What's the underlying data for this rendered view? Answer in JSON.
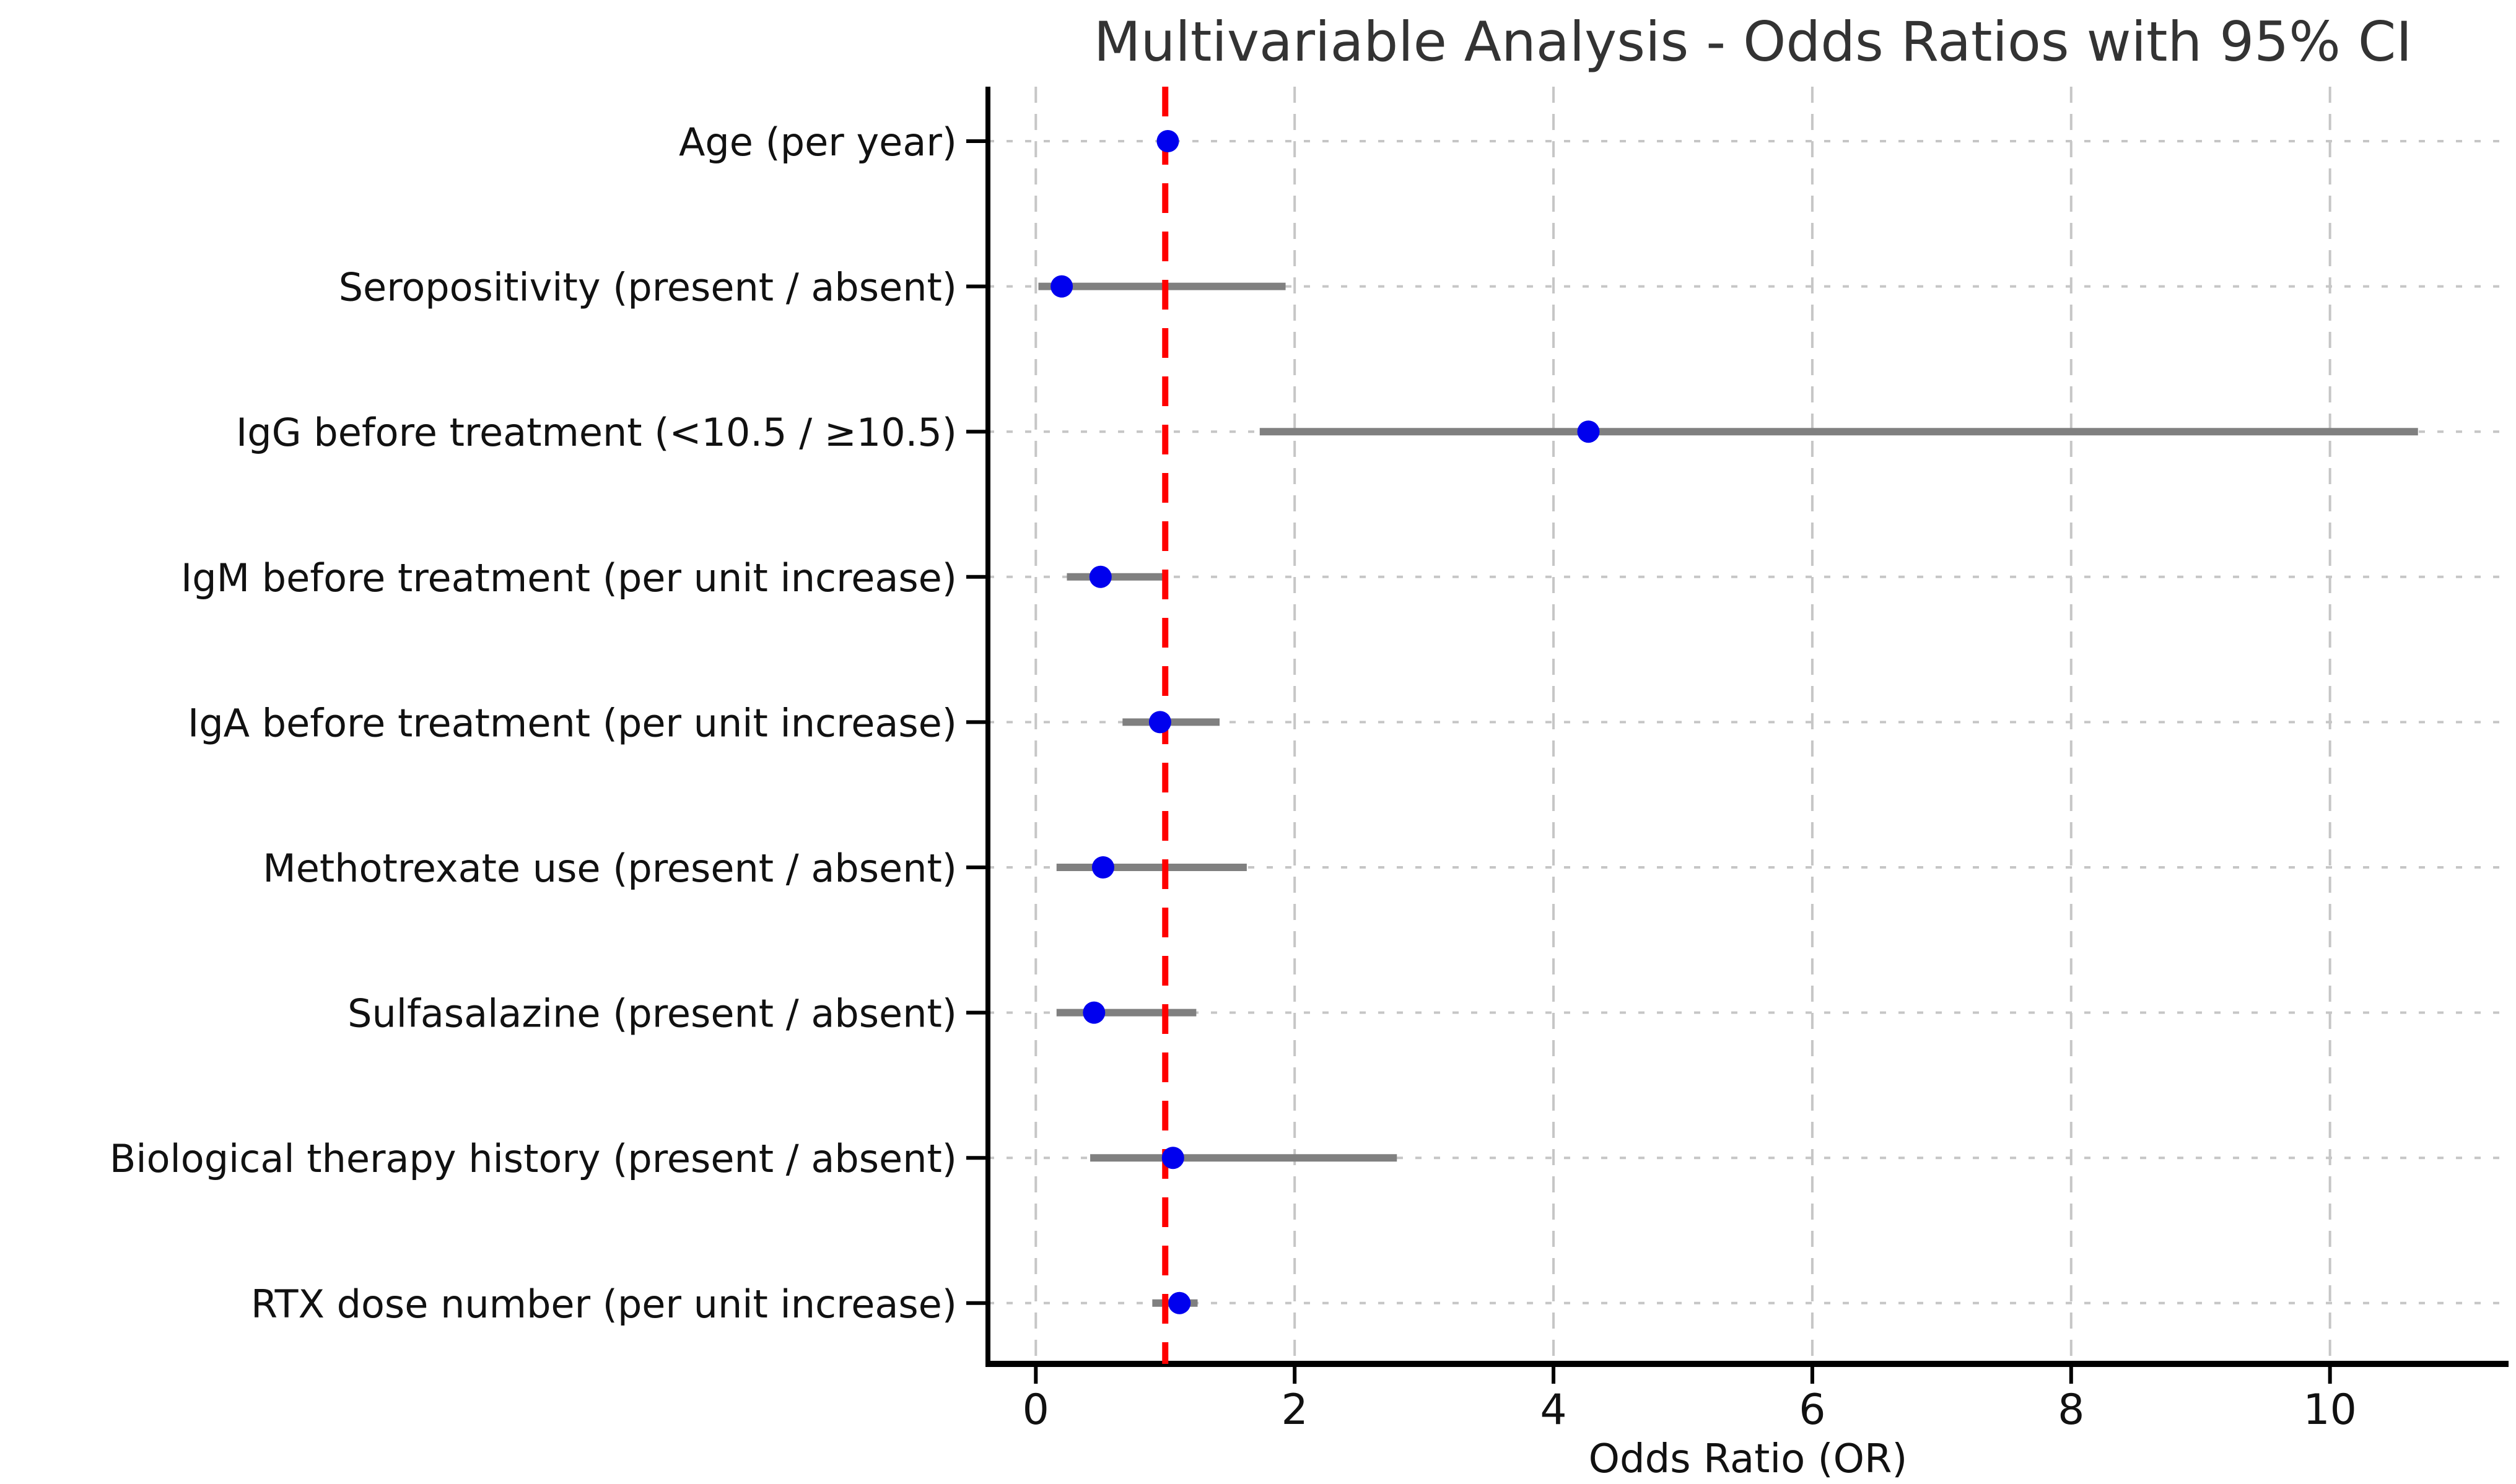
{
  "chart_data": {
    "type": "scatter",
    "variant": "forest-plot",
    "title": "Multivariable Analysis - Odds Ratios with 95% CI",
    "xlabel": "Odds Ratio (OR)",
    "ylabel": "",
    "x_ticks": [
      0,
      2,
      4,
      6,
      8,
      10
    ],
    "xlim": [
      -0.37,
      11.38
    ],
    "grid": "both-light-dashed",
    "legend": "none",
    "reference_line": {
      "value": 1,
      "style": "dashed",
      "color": "#ff0000"
    },
    "rows": [
      {
        "label": "Age (per year)",
        "or": 1.02,
        "ci_low": 0.98,
        "ci_high": 1.06
      },
      {
        "label": "Seropositivity (present / absent)",
        "or": 0.2,
        "ci_low": 0.02,
        "ci_high": 1.93
      },
      {
        "label": "IgG before treatment (<10.5 / ≥10.5)",
        "or": 4.27,
        "ci_low": 1.73,
        "ci_high": 10.68
      },
      {
        "label": "IgM before treatment (per unit increase)",
        "or": 0.5,
        "ci_low": 0.24,
        "ci_high": 0.99
      },
      {
        "label": "IgA before treatment (per unit increase)",
        "or": 0.96,
        "ci_low": 0.67,
        "ci_high": 1.42
      },
      {
        "label": "Methotrexate use (present / absent)",
        "or": 0.52,
        "ci_low": 0.16,
        "ci_high": 1.63
      },
      {
        "label": "Sulfasalazine (present / absent)",
        "or": 0.45,
        "ci_low": 0.16,
        "ci_high": 1.24
      },
      {
        "label": "Biological therapy history (present / absent)",
        "or": 1.06,
        "ci_low": 0.42,
        "ci_high": 2.79
      },
      {
        "label": "RTX dose number (per unit increase)",
        "or": 1.11,
        "ci_low": 0.9,
        "ci_high": 1.25
      }
    ],
    "colors": {
      "point": "#0000ee",
      "ci_bar": "#808080",
      "reference": "#ff0000",
      "grid": "#c6c6c6",
      "axis": "#000000",
      "title_text": "#333333",
      "label_text": "#111111"
    }
  }
}
